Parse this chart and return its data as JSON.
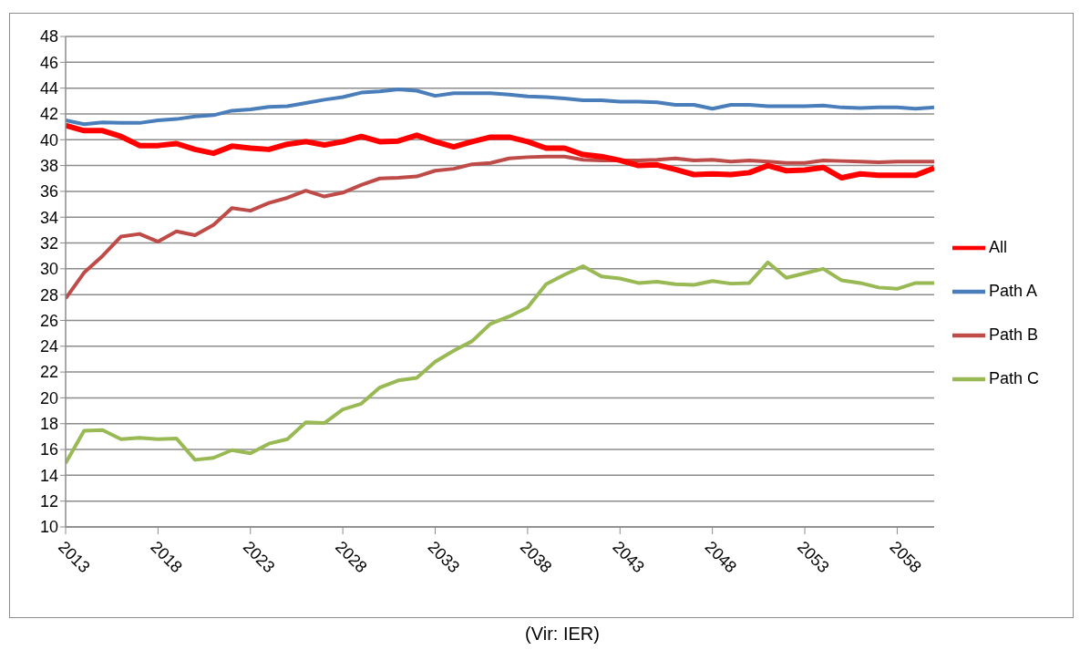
{
  "chart_data": {
    "type": "line",
    "annotations": [
      "(Vir: IER)"
    ],
    "x": [
      2013,
      2014,
      2015,
      2016,
      2017,
      2018,
      2019,
      2020,
      2021,
      2022,
      2023,
      2024,
      2025,
      2026,
      2027,
      2028,
      2029,
      2030,
      2031,
      2032,
      2033,
      2034,
      2035,
      2036,
      2037,
      2038,
      2039,
      2040,
      2041,
      2042,
      2043,
      2044,
      2045,
      2046,
      2047,
      2048,
      2049,
      2050,
      2051,
      2052,
      2053,
      2054,
      2055,
      2056,
      2057,
      2058,
      2059,
      2060
    ],
    "series": [
      {
        "name": "Path A",
        "color": "#4a7ebb",
        "values": [
          41.5,
          41.2,
          41.35,
          41.3,
          41.3,
          41.5,
          41.6,
          41.8,
          41.9,
          42.25,
          42.35,
          42.55,
          42.6,
          42.85,
          43.1,
          43.3,
          43.65,
          43.75,
          43.9,
          43.8,
          43.4,
          43.6,
          43.6,
          43.6,
          43.5,
          43.35,
          43.3,
          43.2,
          43.05,
          43.05,
          42.95,
          42.95,
          42.9,
          42.7,
          42.7,
          42.4,
          42.7,
          42.7,
          42.6,
          42.6,
          42.6,
          42.65,
          42.5,
          42.45,
          42.5,
          42.5,
          42.4,
          42.5
        ]
      },
      {
        "name": "Path B",
        "color": "#be4b48",
        "values": [
          27.7,
          29.7,
          31.0,
          32.5,
          32.7,
          32.1,
          32.9,
          32.6,
          33.4,
          34.7,
          34.5,
          35.1,
          35.5,
          36.05,
          35.6,
          35.9,
          36.5,
          37.0,
          37.05,
          37.15,
          37.6,
          37.75,
          38.1,
          38.2,
          38.55,
          38.65,
          38.7,
          38.7,
          38.45,
          38.4,
          38.4,
          38.4,
          38.45,
          38.55,
          38.4,
          38.45,
          38.3,
          38.4,
          38.3,
          38.2,
          38.2,
          38.4,
          38.35,
          38.3,
          38.25,
          38.3,
          38.3,
          38.3
        ]
      },
      {
        "name": "Path C",
        "color": "#98b954",
        "values": [
          14.95,
          17.45,
          17.5,
          16.8,
          16.9,
          16.8,
          16.85,
          15.2,
          15.35,
          15.95,
          15.7,
          16.45,
          16.8,
          18.1,
          18.05,
          19.1,
          19.55,
          20.8,
          21.35,
          21.55,
          22.8,
          23.65,
          24.4,
          25.75,
          26.3,
          27.0,
          28.8,
          29.55,
          30.2,
          29.4,
          29.25,
          28.9,
          29.0,
          28.8,
          28.75,
          29.05,
          28.85,
          28.9,
          30.5,
          29.3,
          29.65,
          30.0,
          29.1,
          28.9,
          28.55,
          28.45,
          28.9,
          28.9
        ]
      },
      {
        "name": "All",
        "color": "#ff0000",
        "values": [
          41.1,
          40.7,
          40.7,
          40.25,
          39.55,
          39.55,
          39.7,
          39.25,
          38.95,
          39.5,
          39.35,
          39.25,
          39.65,
          39.85,
          39.6,
          39.85,
          40.25,
          39.85,
          39.9,
          40.35,
          39.85,
          39.45,
          39.85,
          40.2,
          40.2,
          39.85,
          39.35,
          39.35,
          38.85,
          38.7,
          38.4,
          38.0,
          38.05,
          37.7,
          37.3,
          37.35,
          37.3,
          37.45,
          38.0,
          37.6,
          37.65,
          37.85,
          37.05,
          37.35,
          37.25,
          37.25,
          37.25,
          37.8
        ]
      }
    ],
    "xlim": [
      2013,
      2060
    ],
    "xticks": [
      2013,
      2018,
      2023,
      2028,
      2033,
      2038,
      2043,
      2048,
      2053,
      2058
    ],
    "ylim": [
      10,
      48
    ],
    "yticks": [
      10,
      12,
      14,
      16,
      18,
      20,
      22,
      24,
      26,
      28,
      30,
      32,
      34,
      36,
      38,
      40,
      42,
      44,
      46,
      48
    ],
    "grid": "y",
    "legend": "right",
    "marker": "none",
    "line_style": "solid"
  }
}
